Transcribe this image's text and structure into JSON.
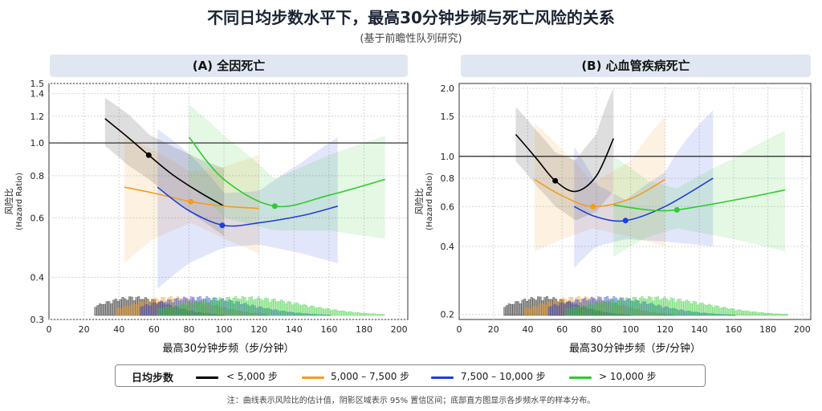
{
  "title": "不同日均步数水平下，最高30分钟步频与死亡风险的关系",
  "subtitle": "(基于前瞻性队列研究)",
  "note": "注：曲线表示风险比的估计值，阴影区域表示 95% 置信区间；底部直方图显示各步频水平的样本分布。",
  "legend": {
    "title": "日均步数",
    "items": [
      {
        "label": "< 5,000 步",
        "color": "#000000"
      },
      {
        "label": "5,000 – 7,500 步",
        "color": "#f39c1f"
      },
      {
        "label": "7,500 – 10,000 步",
        "color": "#1f3fd6"
      },
      {
        "label": "> 10,000 步",
        "color": "#2ecc2e"
      }
    ]
  },
  "chart_data": [
    {
      "type": "line",
      "title": "(A) 全因死亡",
      "xlabel": "最高30分钟步频（步/分钟）",
      "ylabel": "风险比",
      "ylabel2": "(Hazard Ratio)",
      "log_y": true,
      "xlim": [
        0,
        205
      ],
      "ylim": [
        0.3,
        1.5
      ],
      "xticks": [
        "0",
        "20",
        "40",
        "60",
        "80",
        "100",
        "120",
        "140",
        "160",
        "180",
        "200"
      ],
      "yticks": [
        "0.3",
        "0.4",
        "0.6",
        "0.8",
        "1.0",
        "1.2",
        "1.4",
        "1.5"
      ],
      "reference_line": 1.0,
      "series": [
        {
          "name": "< 5,000 步",
          "x": [
            32,
            45,
            57,
            70,
            85,
            100
          ],
          "y": [
            1.18,
            1.04,
            0.92,
            0.81,
            0.72,
            0.65
          ],
          "lo": [
            0.98,
            0.86,
            0.78,
            0.69,
            0.6,
            0.53
          ],
          "hi": [
            1.36,
            1.22,
            1.06,
            0.98,
            0.9,
            0.84
          ],
          "marker": [
            57,
            0.92
          ]
        },
        {
          "name": "5,000 – 7,500 步",
          "x": [
            43,
            60,
            81,
            100,
            120
          ],
          "y": [
            0.74,
            0.71,
            0.67,
            0.65,
            0.64
          ],
          "lo": [
            0.44,
            0.52,
            0.58,
            0.52,
            0.47
          ],
          "hi": [
            1.05,
            0.95,
            0.82,
            0.85,
            0.92
          ],
          "marker": [
            81,
            0.67
          ]
        },
        {
          "name": "7,500 – 10,000 步",
          "x": [
            62,
            80,
            100,
            120,
            145,
            165
          ],
          "y": [
            0.74,
            0.63,
            0.57,
            0.58,
            0.61,
            0.65
          ],
          "lo": [
            0.37,
            0.44,
            0.49,
            0.5,
            0.47,
            0.44
          ],
          "hi": [
            1.1,
            0.93,
            0.71,
            0.72,
            0.88,
            1.04
          ],
          "marker": [
            99,
            0.57
          ]
        },
        {
          "name": "> 10,000 步",
          "x": [
            80,
            100,
            129,
            160,
            192
          ],
          "y": [
            1.04,
            0.78,
            0.65,
            0.7,
            0.78
          ],
          "lo": [
            0.75,
            0.6,
            0.55,
            0.55,
            0.52
          ],
          "hi": [
            1.3,
            1.05,
            0.78,
            0.92,
            1.05
          ],
          "marker": [
            129,
            0.65
          ]
        }
      ]
    },
    {
      "type": "line",
      "title": "(B) 心血管疾病死亡",
      "xlabel": "最高30分钟步频（步/分钟）",
      "ylabel": "风险比",
      "ylabel2": "(Hazard Ratio)",
      "log_y": true,
      "xlim": [
        0,
        205
      ],
      "ylim": [
        0.19,
        2.1
      ],
      "xticks": [
        "0",
        "20",
        "40",
        "60",
        "80",
        "100",
        "120",
        "140",
        "160",
        "180",
        "200"
      ],
      "yticks": [
        "0.2",
        "0.4",
        "0.6",
        "0.8",
        "1.0",
        "1.5",
        "2.0"
      ],
      "reference_line": 1.0,
      "series": [
        {
          "name": "< 5,000 步",
          "x": [
            33,
            45,
            56,
            68,
            80,
            90
          ],
          "y": [
            1.25,
            0.98,
            0.78,
            0.7,
            0.82,
            1.2
          ],
          "lo": [
            0.95,
            0.74,
            0.6,
            0.52,
            0.57,
            0.7
          ],
          "hi": [
            1.65,
            1.3,
            1.04,
            0.96,
            1.25,
            2.0
          ],
          "marker": [
            56,
            0.78
          ]
        },
        {
          "name": "5,000 – 7,500 步",
          "x": [
            44,
            60,
            78,
            100,
            120
          ],
          "y": [
            0.79,
            0.67,
            0.6,
            0.65,
            0.79
          ],
          "lo": [
            0.38,
            0.43,
            0.48,
            0.44,
            0.4
          ],
          "hi": [
            1.4,
            1.07,
            0.76,
            0.95,
            1.5
          ],
          "marker": [
            78,
            0.6
          ]
        },
        {
          "name": "7,500 – 10,000 步",
          "x": [
            67,
            80,
            97,
            120,
            148
          ],
          "y": [
            0.6,
            0.54,
            0.52,
            0.6,
            0.8
          ],
          "lo": [
            0.32,
            0.4,
            0.43,
            0.42,
            0.4
          ],
          "hi": [
            1.1,
            0.75,
            0.64,
            0.85,
            1.6
          ],
          "marker": [
            97,
            0.52
          ]
        },
        {
          "name": "> 10,000 步",
          "x": [
            90,
            110,
            127,
            160,
            190
          ],
          "y": [
            0.61,
            0.58,
            0.58,
            0.64,
            0.71
          ],
          "lo": [
            0.36,
            0.44,
            0.48,
            0.43,
            0.38
          ],
          "hi": [
            1.0,
            0.78,
            0.72,
            0.98,
            1.3
          ],
          "marker": [
            127,
            0.58
          ]
        }
      ]
    }
  ],
  "histograms": [
    {
      "name": "< 5,000 步",
      "color": "#000000",
      "range": [
        26,
        100
      ],
      "peak": 48
    },
    {
      "name": "5,000 – 7,500 步",
      "color": "#f39c1f",
      "range": [
        38,
        125
      ],
      "peak": 70
    },
    {
      "name": "7,500 – 10,000 步",
      "color": "#1f3fd6",
      "range": [
        52,
        160
      ],
      "peak": 85
    },
    {
      "name": "> 10,000 步",
      "color": "#2ecc2e",
      "range": [
        62,
        192
      ],
      "peak": 110
    }
  ]
}
